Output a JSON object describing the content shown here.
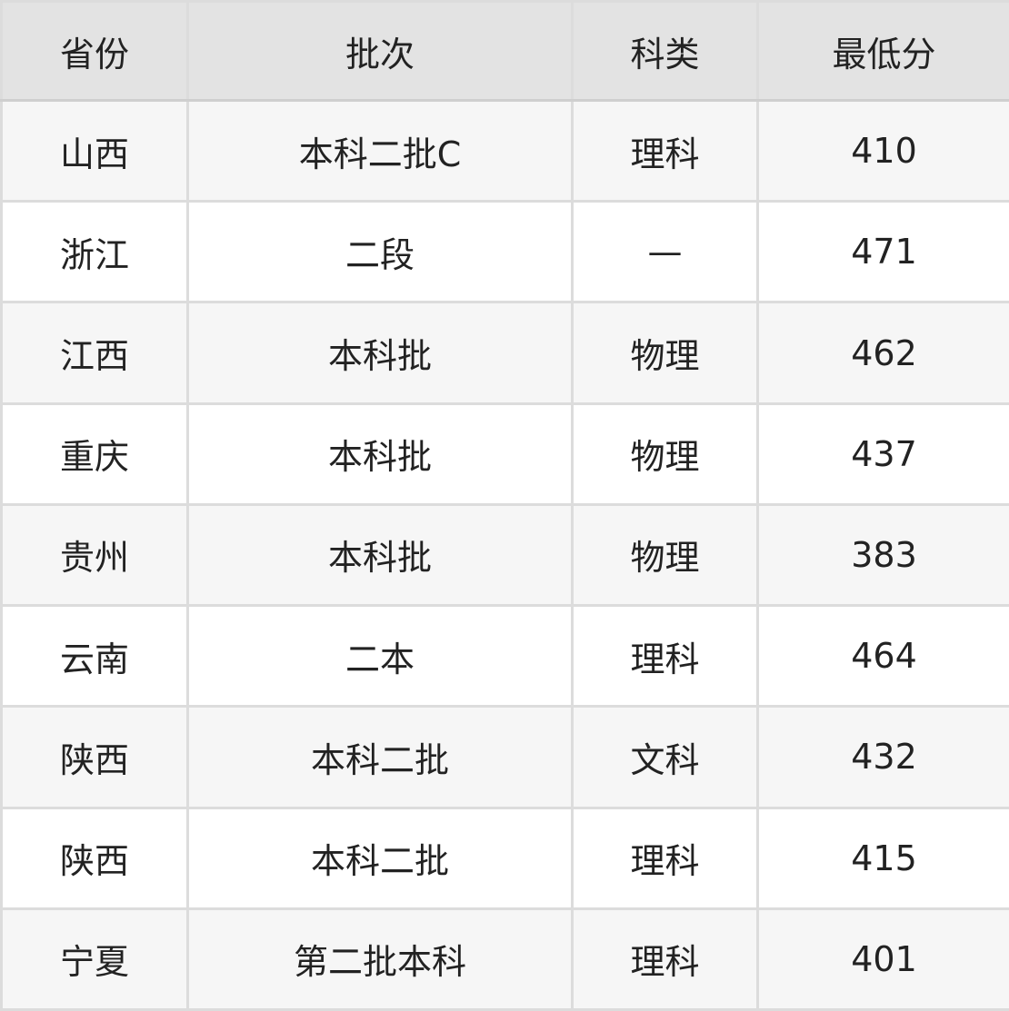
{
  "headers": [
    "省份",
    "批次",
    "科类",
    "最低分"
  ],
  "rows": [
    [
      "山西",
      "本科二批C",
      "理科",
      "410"
    ],
    [
      "浙江",
      "二段",
      "—",
      "471"
    ],
    [
      "江西",
      "本科批",
      "物理",
      "462"
    ],
    [
      "重庆",
      "本科批",
      "物理",
      "437"
    ],
    [
      "贵州",
      "本科批",
      "物理",
      "383"
    ],
    [
      "云南",
      "二本",
      "理科",
      "464"
    ],
    [
      "陕西",
      "本科二批",
      "文科",
      "432"
    ],
    [
      "陕西",
      "本科二批",
      "理科",
      "415"
    ],
    [
      "宁夏",
      "第二批本科",
      "理科",
      "401"
    ]
  ]
}
